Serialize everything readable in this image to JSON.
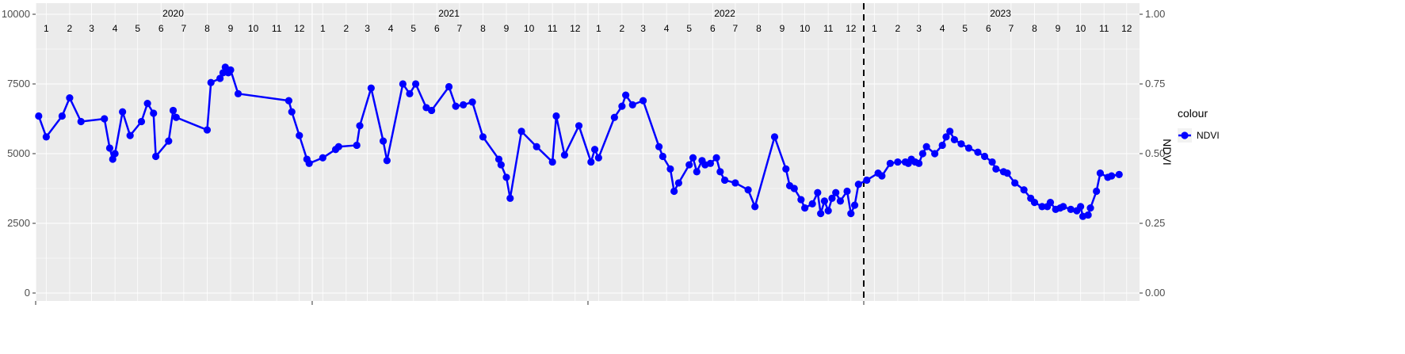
{
  "chart_data": {
    "type": "line",
    "x_range": [
      "2020-01-01",
      "2023-12-31"
    ],
    "ylim_left": [
      0,
      10000
    ],
    "ylim_right": [
      0.0,
      1.0
    ],
    "y_ticks_left": [
      "0",
      "2500",
      "5000",
      "7500",
      "10000"
    ],
    "y_ticks_right": [
      "0.00",
      "0.25",
      "0.50",
      "0.75",
      "1.00"
    ],
    "ylabel_right": "NDVI",
    "years": [
      "2020",
      "2021",
      "2022",
      "2023"
    ],
    "month_labels": [
      "1",
      "2",
      "3",
      "4",
      "5",
      "6",
      "7",
      "8",
      "9",
      "10",
      "11",
      "12"
    ],
    "divider_date": "2023-01-01",
    "legend": {
      "title": "colour",
      "position": "right"
    },
    "series": [
      {
        "name": "NDVI",
        "color": "#0000FF",
        "values": [
          [
            "2020-01-05",
            6350
          ],
          [
            "2020-01-15",
            5600
          ],
          [
            "2020-02-05",
            6350
          ],
          [
            "2020-02-15",
            7000
          ],
          [
            "2020-03-01",
            6150
          ],
          [
            "2020-04-01",
            6250
          ],
          [
            "2020-04-08",
            5200
          ],
          [
            "2020-04-12",
            4800
          ],
          [
            "2020-04-15",
            5000
          ],
          [
            "2020-04-25",
            6500
          ],
          [
            "2020-05-05",
            5650
          ],
          [
            "2020-05-20",
            6150
          ],
          [
            "2020-05-28",
            6800
          ],
          [
            "2020-06-05",
            6450
          ],
          [
            "2020-06-08",
            4900
          ],
          [
            "2020-06-25",
            5450
          ],
          [
            "2020-07-01",
            6550
          ],
          [
            "2020-07-05",
            6300
          ],
          [
            "2020-08-15",
            5850
          ],
          [
            "2020-08-20",
            7550
          ],
          [
            "2020-09-01",
            7700
          ],
          [
            "2020-09-05",
            7900
          ],
          [
            "2020-09-08",
            8100
          ],
          [
            "2020-09-12",
            7900
          ],
          [
            "2020-09-15",
            8000
          ],
          [
            "2020-09-25",
            7150
          ],
          [
            "2020-12-01",
            6900
          ],
          [
            "2020-12-05",
            6500
          ],
          [
            "2020-12-15",
            5650
          ],
          [
            "2020-12-25",
            4800
          ],
          [
            "2020-12-28",
            4650
          ],
          [
            "2021-01-15",
            4850
          ],
          [
            "2021-02-01",
            5150
          ],
          [
            "2021-02-05",
            5250
          ],
          [
            "2021-03-01",
            5300
          ],
          [
            "2021-03-05",
            6000
          ],
          [
            "2021-03-20",
            7350
          ],
          [
            "2021-04-05",
            5450
          ],
          [
            "2021-04-10",
            4750
          ],
          [
            "2021-05-01",
            7500
          ],
          [
            "2021-05-10",
            7150
          ],
          [
            "2021-05-18",
            7500
          ],
          [
            "2021-06-01",
            6650
          ],
          [
            "2021-06-08",
            6550
          ],
          [
            "2021-07-01",
            7400
          ],
          [
            "2021-07-10",
            6700
          ],
          [
            "2021-07-20",
            6750
          ],
          [
            "2021-08-01",
            6850
          ],
          [
            "2021-08-15",
            5600
          ],
          [
            "2021-09-05",
            4800
          ],
          [
            "2021-09-08",
            4600
          ],
          [
            "2021-09-15",
            4150
          ],
          [
            "2021-09-20",
            3400
          ],
          [
            "2021-10-05",
            5800
          ],
          [
            "2021-10-25",
            5250
          ],
          [
            "2021-11-15",
            4700
          ],
          [
            "2021-11-20",
            6350
          ],
          [
            "2021-12-01",
            4950
          ],
          [
            "2021-12-20",
            6000
          ],
          [
            "2022-01-05",
            4700
          ],
          [
            "2022-01-10",
            5150
          ],
          [
            "2022-01-15",
            4850
          ],
          [
            "2022-02-05",
            6300
          ],
          [
            "2022-02-15",
            6700
          ],
          [
            "2022-02-20",
            7100
          ],
          [
            "2022-03-01",
            6750
          ],
          [
            "2022-03-15",
            6900
          ],
          [
            "2022-04-05",
            5250
          ],
          [
            "2022-04-10",
            4900
          ],
          [
            "2022-04-20",
            4450
          ],
          [
            "2022-04-25",
            3650
          ],
          [
            "2022-05-01",
            3950
          ],
          [
            "2022-05-15",
            4600
          ],
          [
            "2022-05-20",
            4850
          ],
          [
            "2022-05-25",
            4350
          ],
          [
            "2022-06-01",
            4750
          ],
          [
            "2022-06-05",
            4600
          ],
          [
            "2022-06-12",
            4650
          ],
          [
            "2022-06-20",
            4850
          ],
          [
            "2022-06-25",
            4350
          ],
          [
            "2022-07-01",
            4050
          ],
          [
            "2022-07-15",
            3950
          ],
          [
            "2022-08-01",
            3700
          ],
          [
            "2022-08-10",
            3100
          ],
          [
            "2022-09-05",
            5600
          ],
          [
            "2022-09-20",
            4450
          ],
          [
            "2022-09-25",
            3850
          ],
          [
            "2022-10-01",
            3750
          ],
          [
            "2022-10-10",
            3350
          ],
          [
            "2022-10-15",
            3050
          ],
          [
            "2022-10-25",
            3200
          ],
          [
            "2022-11-01",
            3600
          ],
          [
            "2022-11-05",
            2850
          ],
          [
            "2022-11-10",
            3300
          ],
          [
            "2022-11-15",
            2950
          ],
          [
            "2022-11-20",
            3400
          ],
          [
            "2022-11-25",
            3600
          ],
          [
            "2022-12-01",
            3300
          ],
          [
            "2022-12-10",
            3650
          ],
          [
            "2022-12-15",
            2850
          ],
          [
            "2022-12-20",
            3150
          ],
          [
            "2022-12-25",
            3900
          ],
          [
            "2023-01-05",
            4050
          ],
          [
            "2023-01-20",
            4300
          ],
          [
            "2023-01-25",
            4200
          ],
          [
            "2023-02-05",
            4650
          ],
          [
            "2023-02-15",
            4700
          ],
          [
            "2023-02-25",
            4700
          ],
          [
            "2023-03-01",
            4650
          ],
          [
            "2023-03-05",
            4800
          ],
          [
            "2023-03-10",
            4700
          ],
          [
            "2023-03-15",
            4650
          ],
          [
            "2023-03-20",
            5000
          ],
          [
            "2023-03-25",
            5250
          ],
          [
            "2023-04-05",
            5000
          ],
          [
            "2023-04-15",
            5300
          ],
          [
            "2023-04-20",
            5600
          ],
          [
            "2023-04-25",
            5800
          ],
          [
            "2023-05-01",
            5500
          ],
          [
            "2023-05-10",
            5350
          ],
          [
            "2023-05-20",
            5200
          ],
          [
            "2023-06-01",
            5050
          ],
          [
            "2023-06-10",
            4900
          ],
          [
            "2023-06-20",
            4700
          ],
          [
            "2023-06-25",
            4450
          ],
          [
            "2023-07-05",
            4350
          ],
          [
            "2023-07-10",
            4300
          ],
          [
            "2023-07-20",
            3950
          ],
          [
            "2023-08-01",
            3700
          ],
          [
            "2023-08-10",
            3400
          ],
          [
            "2023-08-15",
            3250
          ],
          [
            "2023-08-25",
            3100
          ],
          [
            "2023-09-01",
            3100
          ],
          [
            "2023-09-05",
            3250
          ],
          [
            "2023-09-12",
            3000
          ],
          [
            "2023-09-18",
            3050
          ],
          [
            "2023-09-22",
            3100
          ],
          [
            "2023-10-02",
            3000
          ],
          [
            "2023-10-10",
            2950
          ],
          [
            "2023-10-15",
            3100
          ],
          [
            "2023-10-18",
            2750
          ],
          [
            "2023-10-25",
            2800
          ],
          [
            "2023-10-28",
            3050
          ],
          [
            "2023-11-05",
            3650
          ],
          [
            "2023-11-10",
            4300
          ],
          [
            "2023-11-20",
            4150
          ],
          [
            "2023-11-25",
            4200
          ],
          [
            "2023-12-05",
            4250
          ]
        ]
      }
    ]
  }
}
